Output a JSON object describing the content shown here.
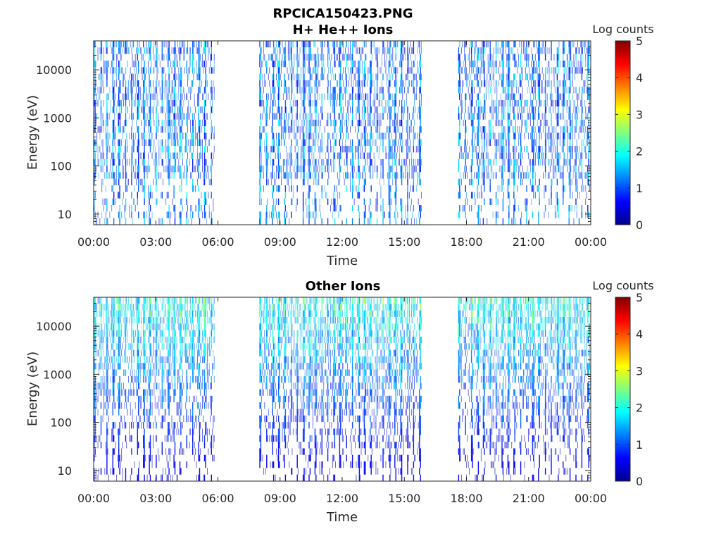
{
  "figure_title": "RPCICA150423.PNG",
  "chart_data": [
    {
      "type": "heatmap",
      "title": "H+ He++ Ions",
      "xlabel": "Time",
      "ylabel": "Energy (eV)",
      "yscale": "log",
      "ylim": [
        6,
        40000
      ],
      "xlim_hours": [
        0,
        24
      ],
      "x_ticks": [
        "00:00",
        "03:00",
        "06:00",
        "09:00",
        "12:00",
        "15:00",
        "18:00",
        "21:00",
        "00:00"
      ],
      "y_ticks": [
        "10",
        "100",
        "1000",
        "10000"
      ],
      "colorbar": {
        "label": "Log counts",
        "ticks": [
          "0",
          "1",
          "2",
          "3",
          "4",
          "5"
        ],
        "range": [
          0,
          5
        ],
        "colormap": "jet"
      },
      "data_segments_hours": [
        [
          0.0,
          5.85
        ],
        [
          8.0,
          15.85
        ],
        [
          17.6,
          24.0
        ]
      ],
      "typical_max_log_counts": 1.3,
      "grid": false
    },
    {
      "type": "heatmap",
      "title": "Other Ions",
      "xlabel": "Time",
      "ylabel": "Energy (eV)",
      "yscale": "log",
      "ylim": [
        6,
        40000
      ],
      "xlim_hours": [
        0,
        24
      ],
      "x_ticks": [
        "00:00",
        "03:00",
        "06:00",
        "09:00",
        "12:00",
        "15:00",
        "18:00",
        "21:00",
        "00:00"
      ],
      "y_ticks": [
        "10",
        "100",
        "1000",
        "10000"
      ],
      "colorbar": {
        "label": "Log counts",
        "ticks": [
          "0",
          "1",
          "2",
          "3",
          "4",
          "5"
        ],
        "range": [
          0,
          5
        ],
        "colormap": "jet"
      },
      "data_segments_hours": [
        [
          0.0,
          5.85
        ],
        [
          8.0,
          15.85
        ],
        [
          17.6,
          24.0
        ]
      ],
      "typical_max_log_counts": 2.0,
      "grid": false
    }
  ]
}
